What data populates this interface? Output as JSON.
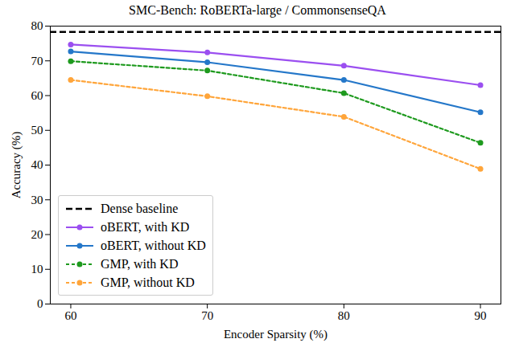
{
  "chart_data": {
    "type": "line",
    "title": "SMC-Bench: RoBERTa-large / CommonsenseQA",
    "x_label": "Encoder Sparsity (%)",
    "y_label": "Accuracy (%)",
    "x": [
      60,
      70,
      80,
      90
    ],
    "xlim": [
      58.5,
      91.5
    ],
    "xticks": [
      60,
      70,
      80,
      90
    ],
    "ylim": [
      0,
      80
    ],
    "yticks": [
      0,
      10,
      20,
      30,
      40,
      50,
      60,
      70,
      80
    ],
    "grid": false,
    "legend": "lower left",
    "reference_lines": [
      {
        "name": "Dense baseline",
        "value": 78.3,
        "color": "#000000",
        "line_style": "dashed"
      }
    ],
    "series": [
      {
        "name": "oBERT, with KD",
        "color": "#9b4ff0",
        "line_style": "solid",
        "marker": "circle",
        "values": [
          74.7,
          72.4,
          68.6,
          63.0
        ]
      },
      {
        "name": "oBERT, without KD",
        "color": "#2477c9",
        "line_style": "solid",
        "marker": "circle",
        "values": [
          72.7,
          69.6,
          64.5,
          55.2
        ]
      },
      {
        "name": "GMP, with KD",
        "color": "#1e9a1e",
        "line_style": "dotted",
        "marker": "circle",
        "values": [
          69.9,
          67.2,
          60.7,
          46.4
        ]
      },
      {
        "name": "GMP, without KD",
        "color": "#ffa53a",
        "line_style": "dotted",
        "marker": "circle",
        "values": [
          64.5,
          59.8,
          53.9,
          38.9
        ]
      }
    ]
  }
}
